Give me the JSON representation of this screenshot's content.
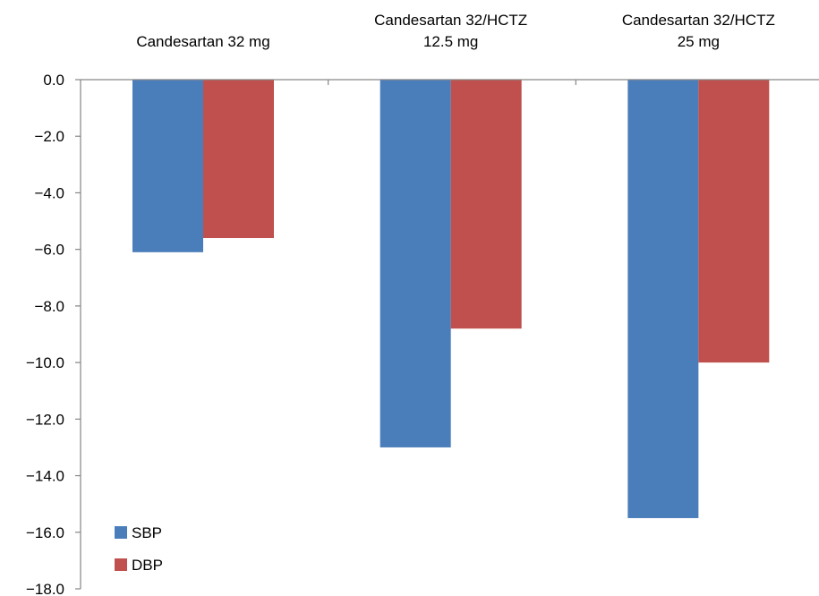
{
  "chart_data": {
    "type": "bar",
    "title": "",
    "xlabel": "",
    "ylabel": "",
    "categories": [
      [
        "Candesartan 32 mg"
      ],
      [
        "Candesartan 32/HCTZ",
        "12.5 mg"
      ],
      [
        "Candesartan 32/HCTZ",
        "25 mg"
      ]
    ],
    "series": [
      {
        "name": "SBP",
        "color": "#4a7ebb",
        "values": [
          -6.1,
          -13.0,
          -15.5
        ]
      },
      {
        "name": "DBP",
        "color": "#c0504d",
        "values": [
          -5.6,
          -8.8,
          -10.0
        ]
      }
    ],
    "ylim": [
      -18.0,
      0.0
    ],
    "yticks": [
      0,
      -2,
      -4,
      -6,
      -8,
      -10,
      -12,
      -14,
      -16,
      -18
    ],
    "ytick_labels": [
      "0.0",
      "−2.0",
      "−4.0",
      "−6.0",
      "−8.0",
      "−10.0",
      "−12.0",
      "−14.0",
      "−16.0",
      "−18.0"
    ],
    "category_axis_position": "top",
    "grid": false,
    "legend": {
      "placement": "bottom-left",
      "entries": [
        "SBP",
        "DBP"
      ]
    }
  }
}
